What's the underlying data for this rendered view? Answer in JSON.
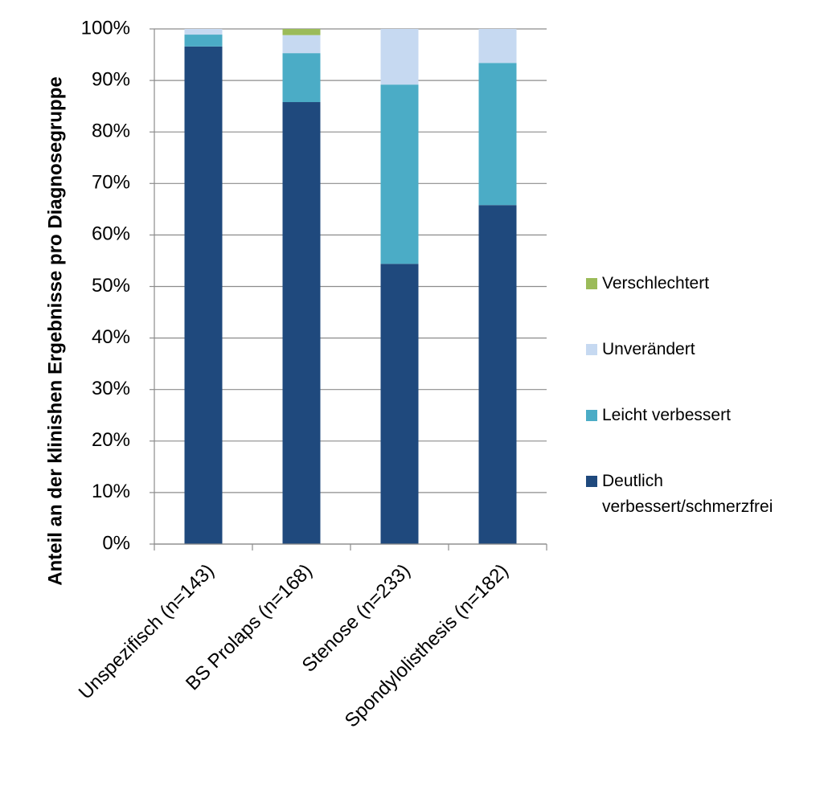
{
  "chart_data": {
    "type": "stacked_bar",
    "y_label": "Anteil an der klinishen Ergebnisse pro Diagnosegruppe",
    "categories": [
      "Unspezifisch (n=143)",
      "BS Prolaps (n=168)",
      "Stenose (n=233)",
      "Spondylolisthesis (n=182)"
    ],
    "series": [
      {
        "name": "Deutlich verbessert/schmerzfrei",
        "color": "#1f497d",
        "values": [
          96.6,
          85.8,
          54.4,
          65.8
        ]
      },
      {
        "name": "Leicht verbessert",
        "color": "#4bacc6",
        "values": [
          2.3,
          9.5,
          34.8,
          27.6
        ]
      },
      {
        "name": "Unverändert",
        "color": "#c6d9f1",
        "values": [
          1.1,
          3.5,
          10.8,
          6.6
        ]
      },
      {
        "name": "Verschlechtert",
        "color": "#9bbb59",
        "values": [
          0,
          1.2,
          0,
          0
        ]
      }
    ],
    "ylim": [
      0,
      100
    ],
    "yticks": [
      {
        "value": 0,
        "label": "0%"
      },
      {
        "value": 10,
        "label": "10%"
      },
      {
        "value": 20,
        "label": "20%"
      },
      {
        "value": 30,
        "label": "30%"
      },
      {
        "value": 40,
        "label": "40%"
      },
      {
        "value": 50,
        "label": "50%"
      },
      {
        "value": 60,
        "label": "60%"
      },
      {
        "value": 70,
        "label": "70%"
      },
      {
        "value": 80,
        "label": "80%"
      },
      {
        "value": 90,
        "label": "90%"
      },
      {
        "value": 100,
        "label": "100%"
      }
    ],
    "grid": true,
    "legend": "right"
  }
}
